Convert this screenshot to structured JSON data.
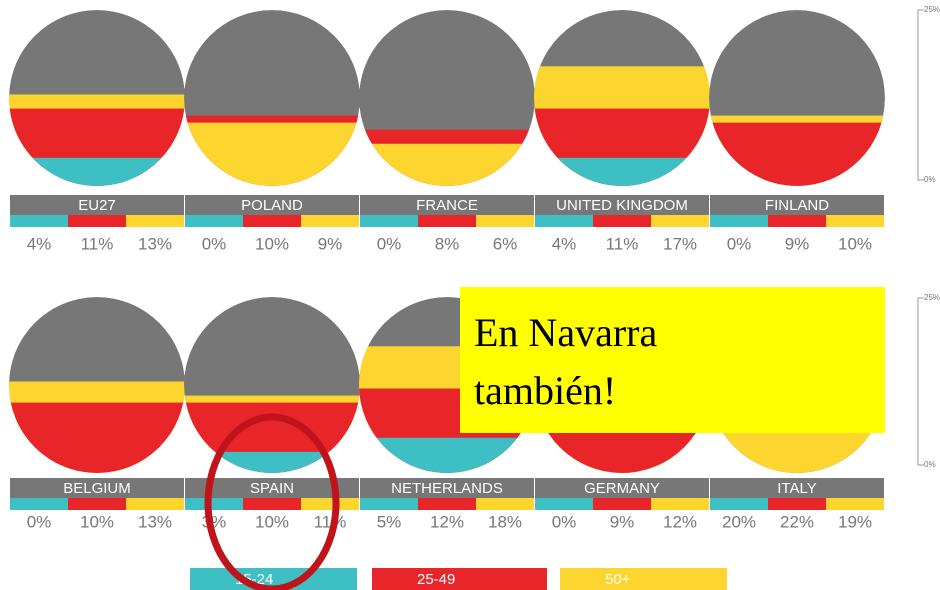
{
  "chart_data": {
    "type": "band-circle",
    "categories": [
      "EU27",
      "POLAND",
      "FRANCE",
      "UNITED KINGDOM",
      "FINLAND",
      "BELGIUM",
      "SPAIN",
      "NETHERLANDS",
      "GERMANY",
      "ITALY"
    ],
    "series": [
      {
        "name": "15-24",
        "color": "#3dbfc4",
        "values": [
          4,
          0,
          0,
          4,
          0,
          0,
          3,
          5,
          0,
          20
        ],
        "value_labels": [
          "4%",
          "0%",
          "0%",
          "4%",
          "0%",
          "0%",
          "3%",
          "5%",
          "0%",
          "20%"
        ]
      },
      {
        "name": "25-49",
        "color": "#e8262a",
        "values": [
          11,
          10,
          8,
          11,
          9,
          10,
          10,
          12,
          9,
          22
        ],
        "value_labels": [
          "11%",
          "10%",
          "8%",
          "11%",
          "9%",
          "10%",
          "10%",
          "12%",
          "9%",
          "22%"
        ]
      },
      {
        "name": "50+",
        "color": "#fcd62e",
        "values": [
          13,
          9,
          6,
          17,
          10,
          13,
          11,
          18,
          12,
          19
        ],
        "value_labels": [
          "13%",
          "9%",
          "6%",
          "17%",
          "10%",
          "13%",
          "11%",
          "18%",
          "12%",
          "19%"
        ]
      }
    ],
    "background_color": "#777777",
    "ylim": [
      0,
      25
    ],
    "yticks": [
      {
        "value": 0,
        "label": "0%"
      },
      {
        "value": 25,
        "label": "25%"
      }
    ],
    "annotation": [
      "En Navarra",
      "también!"
    ]
  }
}
